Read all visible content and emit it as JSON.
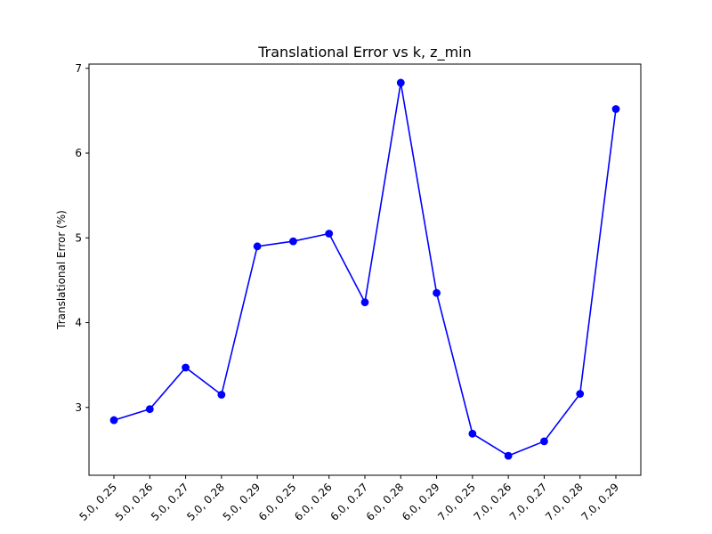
{
  "chart_data": {
    "type": "line",
    "title": "Translational Error vs k, z_min",
    "xlabel": "",
    "ylabel": "Translational Error (%)",
    "categories": [
      "5.0, 0.25",
      "5.0, 0.26",
      "5.0, 0.27",
      "5.0, 0.28",
      "5.0, 0.29",
      "6.0, 0.25",
      "6.0, 0.26",
      "6.0, 0.27",
      "6.0, 0.28",
      "6.0, 0.29",
      "7.0, 0.25",
      "7.0, 0.26",
      "7.0, 0.27",
      "7.0, 0.28",
      "7.0, 0.29"
    ],
    "series": [
      {
        "values": [
          2.85,
          2.98,
          3.47,
          3.15,
          4.9,
          4.96,
          5.05,
          4.24,
          6.83,
          4.35,
          2.69,
          2.43,
          2.6,
          3.16,
          6.52
        ],
        "color": "#0000ff"
      }
    ],
    "ylim": [
      2.2,
      7.05
    ],
    "yticks": [
      3,
      4,
      5,
      6,
      7
    ],
    "grid": false,
    "legend": "none"
  }
}
